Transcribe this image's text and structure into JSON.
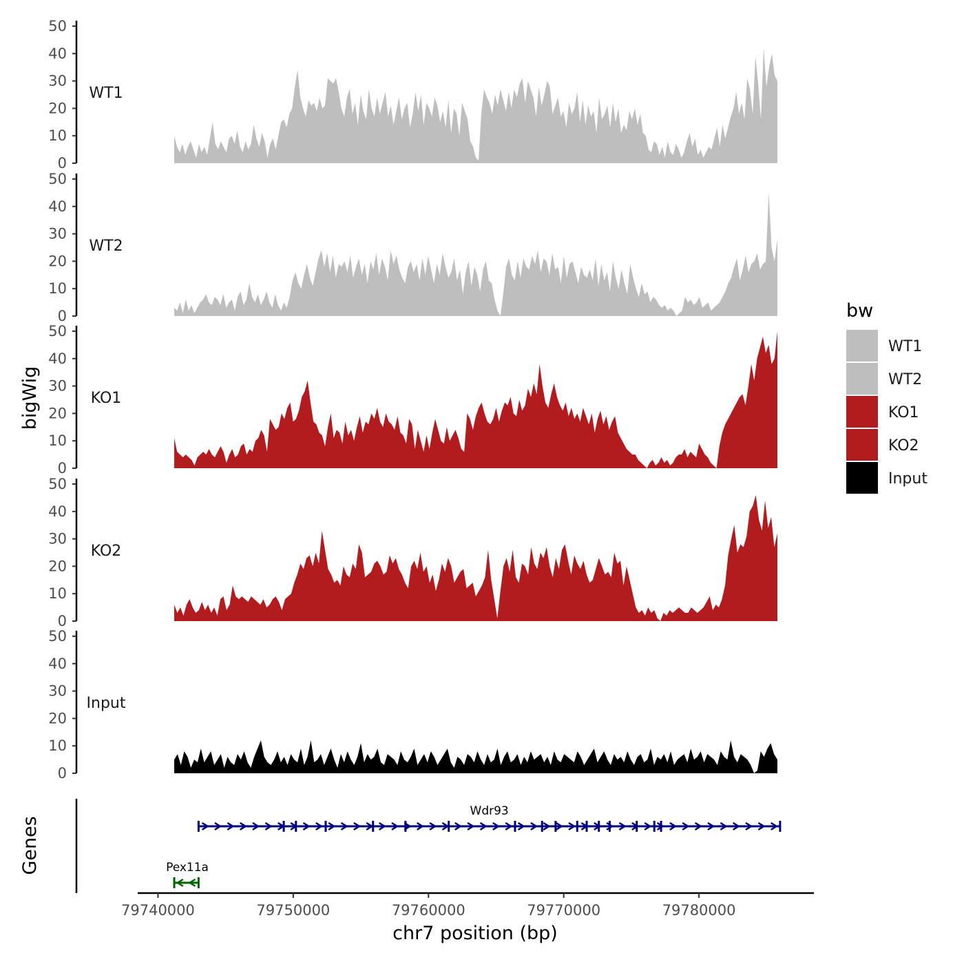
{
  "chart_data": {
    "type": "area",
    "chromosome": "chr7",
    "xlabel": "chr7 position (bp)",
    "ylabel": "bigWig",
    "genes_label": "Genes",
    "xlim": [
      79738500,
      79788500
    ],
    "x_ticks": [
      79740000,
      79750000,
      79760000,
      79770000,
      79780000
    ],
    "x_tick_labels": [
      "79740000",
      "79750000",
      "79760000",
      "79770000",
      "79780000"
    ],
    "ylim": [
      0,
      52
    ],
    "y_ticks": [
      0,
      10,
      20,
      30,
      40,
      50
    ],
    "y_tick_labels": [
      "0",
      "10",
      "20",
      "30",
      "40",
      "50"
    ],
    "legend": {
      "title": "bw",
      "entries": [
        {
          "label": "WT1",
          "color": "#bebebe"
        },
        {
          "label": "WT2",
          "color": "#bebebe"
        },
        {
          "label": "KO1",
          "color": "#b21c1f"
        },
        {
          "label": "KO2",
          "color": "#b21c1f"
        },
        {
          "label": "Input",
          "color": "#000000"
        }
      ]
    },
    "series": [
      {
        "name": "WT1",
        "color": "#bebebe",
        "x_start": 79741200,
        "x_end": 79785800,
        "values": [
          10,
          6,
          4,
          7,
          3,
          6,
          8,
          5,
          2,
          7,
          4,
          6,
          3,
          9,
          15,
          7,
          5,
          8,
          6,
          4,
          9,
          10,
          7,
          12,
          6,
          4,
          8,
          5,
          7,
          14,
          9,
          6,
          11,
          8,
          2,
          7,
          9,
          5,
          10,
          15,
          16,
          13,
          18,
          20,
          28,
          34,
          24,
          20,
          17,
          23,
          21,
          22,
          19,
          24,
          20,
          21,
          31,
          30,
          29,
          31,
          26,
          20,
          17,
          24,
          27,
          18,
          22,
          14,
          25,
          19,
          16,
          27,
          20,
          17,
          24,
          18,
          22,
          26,
          17,
          21,
          14,
          19,
          24,
          16,
          20,
          22,
          13,
          18,
          26,
          19,
          25,
          14,
          22,
          20,
          17,
          24,
          21,
          15,
          19,
          13,
          23,
          11,
          20,
          18,
          10,
          22,
          19,
          16,
          8,
          6,
          2,
          1,
          18,
          27,
          24,
          22,
          18,
          25,
          21,
          27,
          23,
          19,
          26,
          20,
          27,
          24,
          29,
          31,
          22,
          30,
          27,
          24,
          17,
          28,
          21,
          25,
          30,
          28,
          18,
          21,
          24,
          17,
          19,
          13,
          22,
          18,
          20,
          26,
          15,
          23,
          14,
          21,
          17,
          19,
          11,
          24,
          16,
          18,
          21,
          13,
          22,
          15,
          20,
          11,
          14,
          12,
          19,
          16,
          20,
          14,
          18,
          11,
          10,
          5,
          4,
          8,
          7,
          3,
          6,
          2,
          8,
          4,
          3,
          7,
          5,
          2,
          4,
          8,
          11,
          6,
          9,
          3,
          5,
          2,
          4,
          6,
          5,
          9,
          13,
          6,
          14,
          9,
          13,
          17,
          20,
          26,
          18,
          22,
          16,
          31,
          27,
          18,
          39,
          29,
          16,
          42,
          28,
          35,
          40,
          32,
          30
        ]
      },
      {
        "name": "WT2",
        "color": "#bebebe",
        "x_start": 79741200,
        "x_end": 79785800,
        "values": [
          3,
          2,
          5,
          1,
          6,
          2,
          4,
          1,
          3,
          5,
          6,
          8,
          5,
          4,
          7,
          6,
          4,
          8,
          3,
          5,
          6,
          2,
          7,
          9,
          4,
          6,
          12,
          7,
          5,
          8,
          4,
          6,
          9,
          5,
          3,
          8,
          4,
          2,
          5,
          3,
          7,
          13,
          16,
          12,
          10,
          15,
          19,
          14,
          11,
          16,
          21,
          24,
          18,
          23,
          16,
          22,
          14,
          19,
          18,
          20,
          16,
          22,
          14,
          18,
          21,
          15,
          19,
          12,
          20,
          17,
          23,
          15,
          21,
          18,
          13,
          24,
          19,
          22,
          17,
          14,
          12,
          18,
          20,
          16,
          19,
          13,
          21,
          15,
          22,
          17,
          12,
          19,
          15,
          23,
          18,
          14,
          16,
          21,
          13,
          17,
          8,
          16,
          20,
          11,
          18,
          15,
          9,
          17,
          20,
          13,
          12,
          6,
          2,
          0,
          8,
          18,
          21,
          15,
          13,
          20,
          14,
          21,
          18,
          17,
          22,
          19,
          24,
          16,
          21,
          20,
          15,
          23,
          17,
          18,
          12,
          22,
          14,
          19,
          20,
          16,
          12,
          18,
          15,
          14,
          17,
          13,
          21,
          11,
          19,
          13,
          16,
          9,
          20,
          14,
          10,
          17,
          12,
          8,
          19,
          14,
          10,
          7,
          12,
          8,
          9,
          5,
          7,
          6,
          4,
          3,
          4,
          2,
          3,
          2,
          0,
          1,
          2,
          7,
          5,
          6,
          4,
          5,
          7,
          3,
          4,
          5,
          2,
          3,
          4,
          5,
          7,
          9,
          12,
          14,
          18,
          21,
          13,
          17,
          22,
          16,
          19,
          20,
          23,
          17,
          19,
          20,
          45,
          25,
          20,
          28
        ]
      },
      {
        "name": "KO1",
        "color": "#b21c1f",
        "x_start": 79741200,
        "x_end": 79785800,
        "values": [
          11,
          6,
          5,
          4,
          5,
          4,
          3,
          1,
          4,
          5,
          6,
          5,
          7,
          5,
          4,
          6,
          8,
          6,
          2,
          5,
          7,
          4,
          5,
          8,
          9,
          5,
          7,
          6,
          10,
          11,
          14,
          12,
          6,
          18,
          16,
          14,
          15,
          20,
          18,
          22,
          24,
          17,
          18,
          21,
          26,
          28,
          32,
          24,
          17,
          16,
          13,
          12,
          8,
          15,
          20,
          11,
          14,
          13,
          9,
          17,
          12,
          14,
          10,
          15,
          19,
          13,
          17,
          16,
          20,
          18,
          22,
          17,
          15,
          20,
          17,
          16,
          14,
          19,
          13,
          12,
          9,
          18,
          16,
          7,
          14,
          10,
          6,
          12,
          7,
          13,
          18,
          14,
          10,
          9,
          15,
          10,
          12,
          14,
          11,
          7,
          6,
          20,
          18,
          14,
          19,
          22,
          24,
          20,
          17,
          16,
          18,
          22,
          17,
          21,
          24,
          23,
          26,
          20,
          19,
          25,
          21,
          23,
          29,
          26,
          31,
          27,
          38,
          30,
          24,
          22,
          27,
          31,
          26,
          23,
          21,
          24,
          19,
          22,
          18,
          20,
          17,
          22,
          19,
          16,
          20,
          13,
          18,
          21,
          16,
          19,
          14,
          17,
          19,
          13,
          11,
          9,
          7,
          6,
          5,
          5,
          3,
          2,
          1,
          0,
          2,
          3,
          1,
          2,
          4,
          2,
          3,
          1,
          2,
          4,
          5,
          5,
          7,
          4,
          6,
          5,
          4,
          9,
          7,
          5,
          4,
          2,
          1,
          0,
          8,
          13,
          16,
          18,
          20,
          22,
          24,
          26,
          27,
          23,
          30,
          38,
          32,
          40,
          44,
          48,
          42,
          45,
          38,
          40,
          50
        ]
      },
      {
        "name": "KO2",
        "color": "#b21c1f",
        "x_start": 79741200,
        "x_end": 79785800,
        "values": [
          6,
          3,
          5,
          2,
          6,
          8,
          5,
          3,
          4,
          7,
          4,
          6,
          3,
          5,
          2,
          8,
          9,
          4,
          6,
          13,
          9,
          8,
          9,
          8,
          7,
          9,
          8,
          7,
          6,
          8,
          5,
          6,
          8,
          9,
          7,
          4,
          8,
          9,
          10,
          14,
          17,
          21,
          19,
          23,
          24,
          20,
          25,
          21,
          33,
          26,
          19,
          17,
          14,
          15,
          13,
          20,
          17,
          16,
          21,
          19,
          28,
          25,
          16,
          17,
          18,
          21,
          22,
          20,
          17,
          18,
          24,
          21,
          23,
          19,
          17,
          14,
          12,
          20,
          22,
          19,
          25,
          18,
          20,
          14,
          17,
          11,
          15,
          21,
          18,
          23,
          20,
          14,
          16,
          18,
          19,
          12,
          13,
          14,
          9,
          11,
          13,
          16,
          26,
          15,
          8,
          1,
          11,
          20,
          23,
          18,
          26,
          16,
          14,
          21,
          20,
          17,
          27,
          21,
          19,
          25,
          23,
          27,
          20,
          16,
          23,
          19,
          26,
          28,
          22,
          17,
          24,
          21,
          19,
          22,
          17,
          14,
          15,
          19,
          23,
          20,
          17,
          18,
          16,
          25,
          21,
          22,
          13,
          20,
          15,
          10,
          5,
          3,
          4,
          2,
          5,
          3,
          4,
          1,
          0,
          3,
          2,
          4,
          3,
          4,
          5,
          4,
          3,
          3,
          5,
          4,
          3,
          4,
          5,
          7,
          9,
          4,
          6,
          5,
          8,
          13,
          24,
          30,
          35,
          25,
          28,
          27,
          31,
          40,
          42,
          46,
          37,
          33,
          44,
          34,
          38,
          27,
          32
        ]
      },
      {
        "name": "Input",
        "color": "#000000",
        "x_start": 79741200,
        "x_end": 79785800,
        "values": [
          5,
          7,
          3,
          8,
          6,
          2,
          5,
          4,
          9,
          4,
          6,
          8,
          3,
          5,
          7,
          2,
          6,
          4,
          3,
          7,
          5,
          8,
          4,
          2,
          6,
          9,
          12,
          6,
          4,
          3,
          5,
          8,
          4,
          6,
          3,
          7,
          5,
          4,
          9,
          3,
          6,
          12,
          4,
          5,
          7,
          3,
          6,
          9,
          5,
          2,
          7,
          4,
          8,
          5,
          3,
          6,
          11,
          4,
          7,
          5,
          6,
          9,
          4,
          3,
          7,
          6,
          5,
          3,
          8,
          5,
          4,
          6,
          9,
          3,
          5,
          7,
          4,
          8,
          6,
          3,
          5,
          7,
          9,
          4,
          2,
          6,
          5,
          3,
          7,
          6,
          4,
          8,
          5,
          3,
          7,
          4,
          5,
          9,
          3,
          6,
          8,
          4,
          5,
          7,
          3,
          6,
          4,
          8,
          5,
          6,
          7,
          4,
          6,
          3,
          8,
          5,
          4,
          7,
          6,
          5,
          4,
          8,
          6,
          3,
          5,
          7,
          9,
          4,
          6,
          8,
          5,
          3,
          7,
          5,
          6,
          4,
          8,
          5,
          3,
          6,
          7,
          4,
          5,
          9,
          3,
          6,
          5,
          7,
          4,
          8,
          3,
          5,
          6,
          7,
          4,
          9,
          5,
          6,
          8,
          4,
          7,
          6,
          5,
          3,
          8,
          6,
          5,
          12,
          6,
          4,
          7,
          6,
          5,
          3,
          0,
          1,
          8,
          6,
          9,
          11,
          7,
          5
        ]
      }
    ],
    "genes": [
      {
        "name": "Wdr93",
        "strand": "+",
        "color": "#00007f",
        "start": 79743000,
        "end": 79786000,
        "exons": [
          79743000,
          79749300,
          79750200,
          79752400,
          79755900,
          79758300,
          79761500,
          79766400,
          79768400,
          79769400,
          79771000,
          79771700,
          79772600,
          79773400,
          79775400,
          79776700,
          79777200,
          79786000
        ]
      },
      {
        "name": "Pex11a",
        "strand": "-",
        "color": "#006400",
        "start": 79741200,
        "end": 79743000,
        "exons": [
          79741200,
          79743000
        ]
      }
    ]
  }
}
